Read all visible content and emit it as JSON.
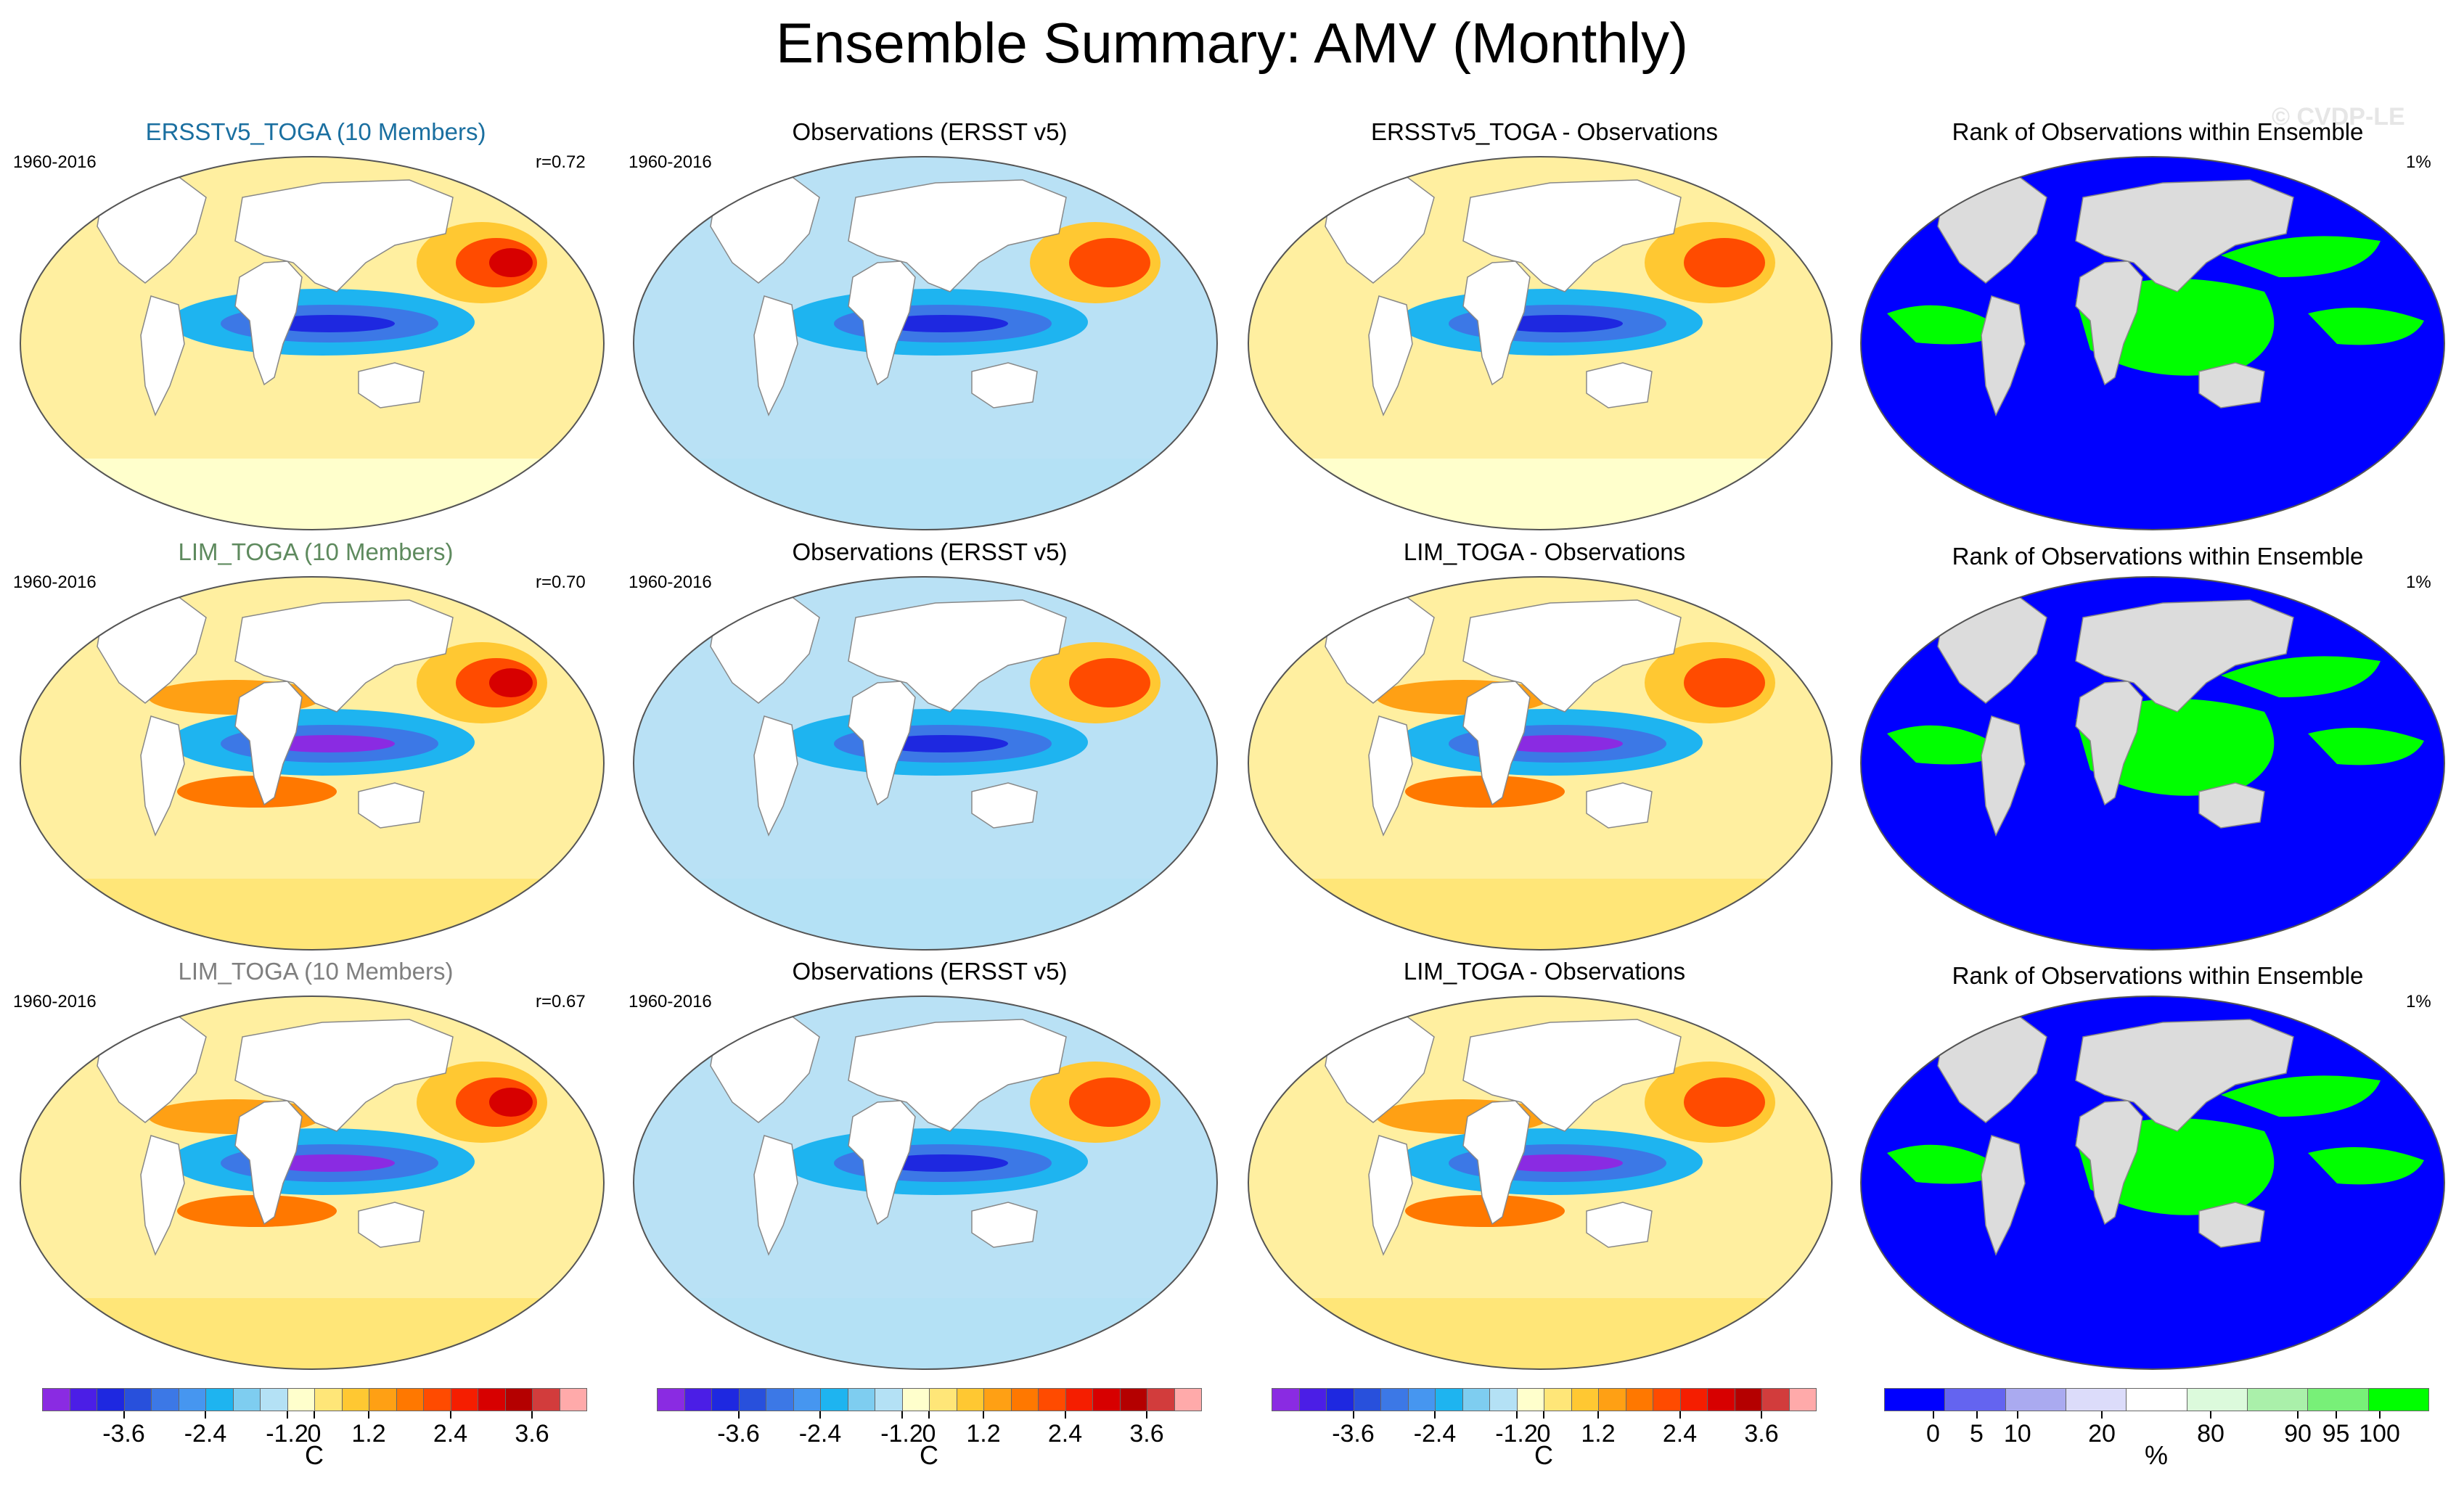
{
  "title": "Ensemble Summary: AMV (Monthly)",
  "watermark": "© CVDP-LE",
  "rows": [
    {
      "model": {
        "title": "ERSSTv5_TOGA (10 Members)",
        "title_color": "#1a6fa0",
        "period": "1960-2016",
        "corr": "r=0.72"
      },
      "obs": {
        "title": "Observations (ERSST v5)",
        "period": "1960-2016"
      },
      "diff": {
        "title": "ERSSTv5_TOGA - Observations"
      },
      "rank": {
        "title": "Rank of Observations within Ensemble",
        "value": "1%"
      }
    },
    {
      "model": {
        "title": "LIM_TOGA (10 Members)",
        "title_color": "#5e8a5e",
        "period": "1960-2016",
        "corr": "r=0.70"
      },
      "obs": {
        "title": "Observations (ERSST v5)",
        "period": "1960-2016"
      },
      "diff": {
        "title": "LIM_TOGA - Observations"
      },
      "rank": {
        "title": "Rank of Observations within Ensemble",
        "value": "1%"
      }
    },
    {
      "model": {
        "title": "LIM_TOGA (10 Members)",
        "title_color": "#7f7f7f",
        "period": "1960-2016",
        "corr": "r=0.67"
      },
      "obs": {
        "title": "Observations (ERSST v5)",
        "period": "1960-2016"
      },
      "diff": {
        "title": "LIM_TOGA - Observations"
      },
      "rank": {
        "title": "Rank of Observations within Ensemble",
        "value": "1%"
      }
    }
  ],
  "temp_colorbar": {
    "colors": [
      "#8a2be2",
      "#4b1ee6",
      "#1e28e0",
      "#2850dc",
      "#3c78e6",
      "#4696f0",
      "#1eb4f0",
      "#7ecdf0",
      "#b4e1f5",
      "#ffffcc",
      "#ffe678",
      "#ffc832",
      "#ffa014",
      "#ff7800",
      "#ff4b00",
      "#f51e00",
      "#d70000",
      "#b40000",
      "#d23c3c",
      "#ffaaaa"
    ],
    "tick_labels": [
      "-3.6",
      "-2.4",
      "-1.2",
      "0",
      "1.2",
      "2.4",
      "3.6"
    ],
    "unit": "C"
  },
  "rank_colorbar": {
    "colors": [
      "#0000ff",
      "#6464f0",
      "#aaaaf0",
      "#dcdcfa",
      "#ffffff",
      "#dcfadc",
      "#aaf0aa",
      "#78f078",
      "#00ff00"
    ],
    "tick_labels": [
      "0",
      "5",
      "10",
      "20",
      "80",
      "90",
      "95",
      "100"
    ],
    "unit": "%"
  },
  "map_colors": {
    "land": "#ffffff",
    "rank_land": "#dcdcdc",
    "ocean_warm": "#ffefa0",
    "ocean_cool": "#b9e1f5",
    "rank_low": "#0000ff",
    "rank_high": "#00ff00"
  }
}
